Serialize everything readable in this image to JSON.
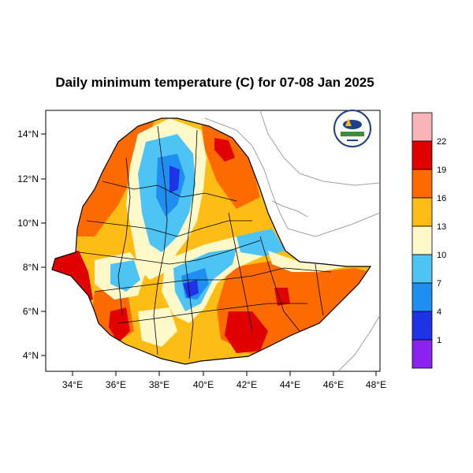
{
  "title": "Daily minimum temperature (C) for 07-08 Jan 2025",
  "x_ticks": [
    "34°E",
    "36°E",
    "38°E",
    "40°E",
    "42°E",
    "44°E",
    "46°E",
    "48°E"
  ],
  "y_ticks": [
    "14°N",
    "12°N",
    "10°N",
    "8°N",
    "6°N",
    "4°N"
  ],
  "legend": {
    "labels": [
      "22",
      "19",
      "16",
      "13",
      "10",
      "7",
      "4",
      "1"
    ],
    "colors": [
      "#f9b4b9",
      "#e00000",
      "#fc6a00",
      "#fdbd15",
      "#fff8c8",
      "#4ec4f5",
      "#1e8ff1",
      "#1f33e6",
      "#8a22f0"
    ]
  },
  "colors": {
    "ocean_line": "#a0a0a0",
    "border": "#000000"
  },
  "logo_icon": "ethiopian-meteorology-logo-icon"
}
